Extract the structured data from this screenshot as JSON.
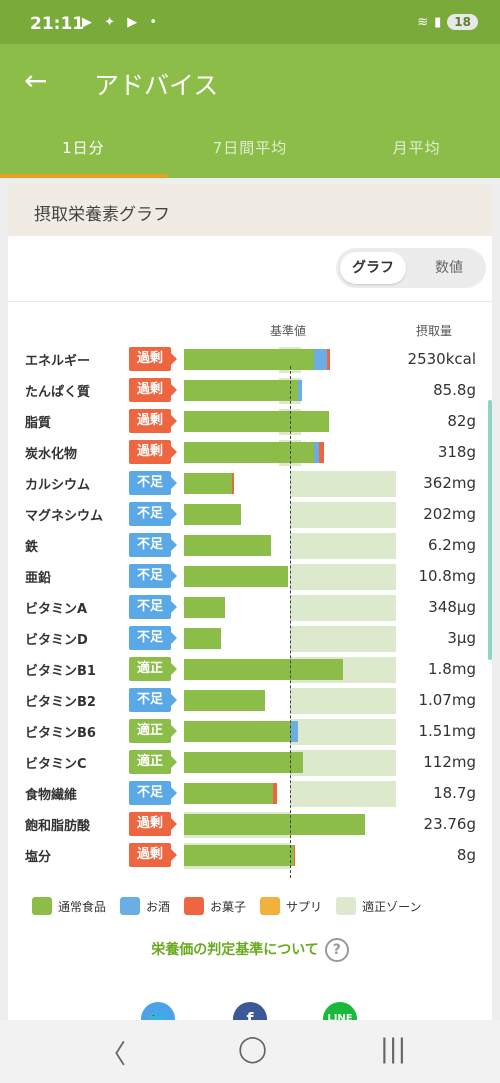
{
  "status_bar": {
    "time": "21:11",
    "battery": "18",
    "notification_icons": [
      "youtube-icon",
      "fire-icon",
      "youtube-icon",
      "dot"
    ]
  },
  "header": {
    "title": "アドバイス",
    "back_icon": "arrow-left-icon"
  },
  "tabs": [
    {
      "label": "1日分",
      "active": true
    },
    {
      "label": "7日間平均",
      "active": false
    },
    {
      "label": "月平均",
      "active": false
    }
  ],
  "card": {
    "title": "摂取栄養素グラフ",
    "toggle": {
      "graph": "グラフ",
      "numeric": "数値",
      "selected": "graph"
    },
    "columns": {
      "standard": "基準値",
      "intake": "摂取量"
    }
  },
  "chart_data": {
    "type": "bar",
    "orientation": "horizontal",
    "stacked": true,
    "baseline_label": "基準値",
    "series_order": [
      "通常食品",
      "お酒",
      "お菓子",
      "サプリ"
    ],
    "rows": [
      {
        "name": "エネルギー",
        "status": "過剰",
        "status_type": "over",
        "value": "2530kcal",
        "pct": {
          "food": 123,
          "alcohol": 12,
          "snack": 3,
          "supplement": 0
        },
        "zone": [
          90,
          110
        ]
      },
      {
        "name": "たんぱく質",
        "status": "過剰",
        "status_type": "over",
        "value": "85.8g",
        "pct": {
          "food": 108,
          "alcohol": 3,
          "snack": 0,
          "supplement": 0
        },
        "zone": [
          90,
          110
        ]
      },
      {
        "name": "脂質",
        "status": "過剰",
        "status_type": "over",
        "value": "82g",
        "pct": {
          "food": 137,
          "alcohol": 0,
          "snack": 0,
          "supplement": 0
        },
        "zone": [
          90,
          110
        ]
      },
      {
        "name": "炭水化物",
        "status": "過剰",
        "status_type": "over",
        "value": "318g",
        "pct": {
          "food": 123,
          "alcohol": 4,
          "snack": 5,
          "supplement": 0
        },
        "zone": [
          90,
          110
        ]
      },
      {
        "name": "カルシウム",
        "status": "不足",
        "status_type": "under",
        "value": "362mg",
        "pct": {
          "food": 45,
          "alcohol": 0,
          "snack": 2,
          "supplement": 0
        },
        "zone": [
          100,
          200
        ]
      },
      {
        "name": "マグネシウム",
        "status": "不足",
        "status_type": "under",
        "value": "202mg",
        "pct": {
          "food": 54,
          "alcohol": 0,
          "snack": 0,
          "supplement": 0
        },
        "zone": [
          100,
          200
        ]
      },
      {
        "name": "鉄",
        "status": "不足",
        "status_type": "under",
        "value": "6.2mg",
        "pct": {
          "food": 82,
          "alcohol": 0,
          "snack": 0,
          "supplement": 0
        },
        "zone": [
          100,
          200
        ]
      },
      {
        "name": "亜鉛",
        "status": "不足",
        "status_type": "under",
        "value": "10.8mg",
        "pct": {
          "food": 98,
          "alcohol": 0,
          "snack": 0,
          "supplement": 0
        },
        "zone": [
          100,
          200
        ]
      },
      {
        "name": "ビタミンA",
        "status": "不足",
        "status_type": "under",
        "value": "348μg",
        "pct": {
          "food": 39,
          "alcohol": 0,
          "snack": 0,
          "supplement": 0
        },
        "zone": [
          100,
          200
        ]
      },
      {
        "name": "ビタミンD",
        "status": "不足",
        "status_type": "under",
        "value": "3μg",
        "pct": {
          "food": 35,
          "alcohol": 0,
          "snack": 0,
          "supplement": 0
        },
        "zone": [
          100,
          200
        ]
      },
      {
        "name": "ビタミンB1",
        "status": "適正",
        "status_type": "ok",
        "value": "1.8mg",
        "pct": {
          "food": 150,
          "alcohol": 0,
          "snack": 0,
          "supplement": 0
        },
        "zone": [
          100,
          200
        ]
      },
      {
        "name": "ビタミンB2",
        "status": "不足",
        "status_type": "under",
        "value": "1.07mg",
        "pct": {
          "food": 76,
          "alcohol": 0,
          "snack": 0,
          "supplement": 0
        },
        "zone": [
          100,
          200
        ]
      },
      {
        "name": "ビタミンB6",
        "status": "適正",
        "status_type": "ok",
        "value": "1.51mg",
        "pct": {
          "food": 101,
          "alcohol": 7,
          "snack": 0,
          "supplement": 0
        },
        "zone": [
          100,
          200
        ]
      },
      {
        "name": "ビタミンC",
        "status": "適正",
        "status_type": "ok",
        "value": "112mg",
        "pct": {
          "food": 112,
          "alcohol": 0,
          "snack": 0,
          "supplement": 0
        },
        "zone": [
          100,
          200
        ]
      },
      {
        "name": "食物繊維",
        "status": "不足",
        "status_type": "under",
        "value": "18.7g",
        "pct": {
          "food": 84,
          "alcohol": 0,
          "snack": 4,
          "supplement": 0
        },
        "zone": [
          100,
          200
        ]
      },
      {
        "name": "飽和脂肪酸",
        "status": "過剰",
        "status_type": "over",
        "value": "23.76g",
        "pct": {
          "food": 171,
          "alcohol": 0,
          "snack": 0,
          "supplement": 0
        },
        "zone": [
          0,
          100
        ]
      },
      {
        "name": "塩分",
        "status": "過剰",
        "status_type": "over",
        "value": "8g",
        "pct": {
          "food": 104,
          "alcohol": 0,
          "snack": 1,
          "supplement": 0
        },
        "zone": [
          0,
          100
        ]
      }
    ]
  },
  "legend": [
    {
      "label": "通常食品",
      "color": "#8cbd49"
    },
    {
      "label": "お酒",
      "color": "#6aaee3"
    },
    {
      "label": "お菓子",
      "color": "#ee6640"
    },
    {
      "label": "サプリ",
      "color": "#f2b13a"
    },
    {
      "label": "適正ゾーン",
      "color": "#dde9cc"
    }
  ],
  "criteria_link": "栄養価の判定基準について",
  "question_mark": "?",
  "share_icons": [
    "twitter-icon",
    "facebook-icon",
    "line-icon"
  ],
  "share_text": {
    "facebook": "f",
    "line": "LINE"
  },
  "nav": {
    "back": "〈",
    "home": "◯",
    "recents": "|||"
  }
}
